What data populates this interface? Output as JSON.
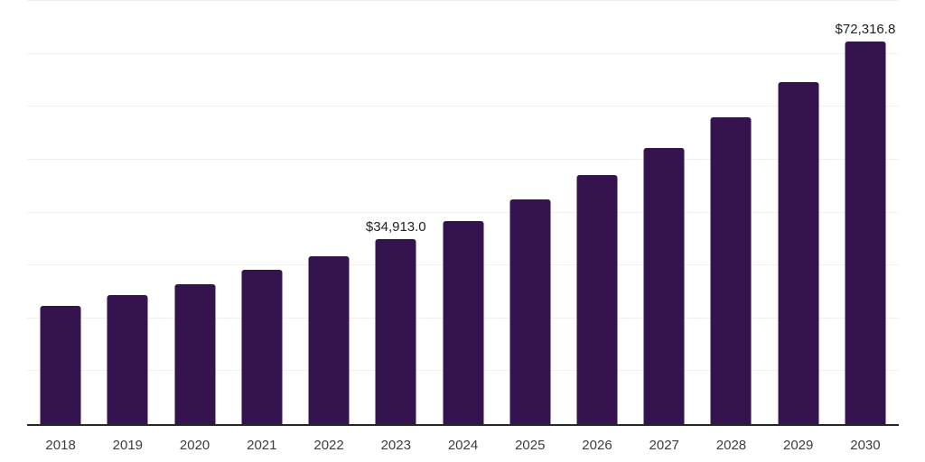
{
  "chart_data": {
    "type": "bar",
    "title": "",
    "xlabel": "",
    "ylabel": "",
    "categories": [
      "2018",
      "2019",
      "2020",
      "2021",
      "2022",
      "2023",
      "2024",
      "2025",
      "2026",
      "2027",
      "2028",
      "2029",
      "2030"
    ],
    "values": [
      22300,
      24400,
      26500,
      29100,
      31800,
      34913.0,
      38400,
      42500,
      47000,
      52200,
      58000,
      64700,
      72316.8
    ],
    "annotations": [
      {
        "category": "2023",
        "text": "$34,913.0"
      },
      {
        "category": "2030",
        "text": "$72,316.8"
      }
    ],
    "ylim": [
      0,
      80000
    ],
    "ytick_step": 10000,
    "y_axis_labels_visible": false,
    "grid": "horizontal",
    "legend": "none",
    "colors": {
      "bar": "#35134F",
      "axis_line": "#262626",
      "gridline": "#f0f0f0",
      "tick_label": "#3c3c3c",
      "data_label": "#1f1f1f",
      "background": "#ffffff"
    }
  }
}
